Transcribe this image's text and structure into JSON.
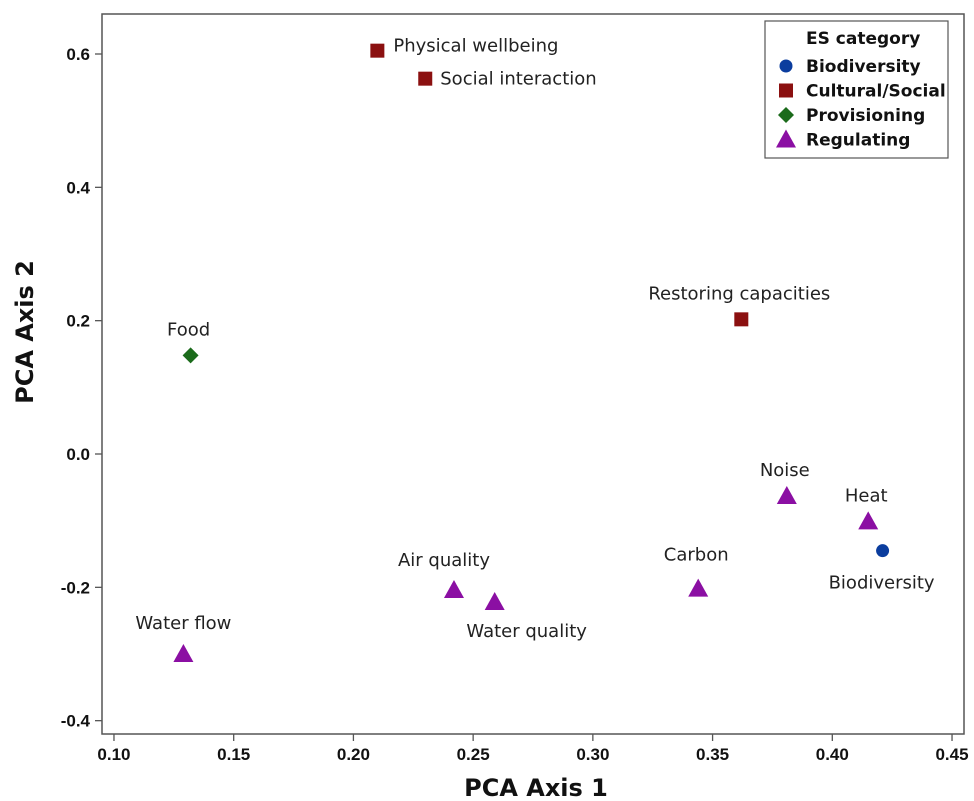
{
  "chart_data": {
    "type": "scatter",
    "xlabel": "PCA Axis 1",
    "ylabel": "PCA Axis 2",
    "xlim": [
      0.095,
      0.455
    ],
    "ylim": [
      -0.42,
      0.66
    ],
    "xticks": [
      0.1,
      0.15,
      0.2,
      0.25,
      0.3,
      0.35,
      0.4,
      0.45
    ],
    "xtick_labels": [
      "0.10",
      "0.15",
      "0.20",
      "0.25",
      "0.30",
      "0.35",
      "0.40",
      "0.45"
    ],
    "yticks": [
      0.6,
      0.4,
      0.2,
      0.0,
      -0.2,
      -0.4
    ],
    "ytick_labels": [
      "0.6",
      "0.4",
      "0.2",
      "0.0",
      "-0.2",
      "-0.4"
    ],
    "grid": false,
    "legend": {
      "title": "ES category",
      "position": "top-right"
    },
    "series": [
      {
        "name": "Biodiversity",
        "marker": "circle",
        "color": "#0b3d9e",
        "points": [
          {
            "x": 0.421,
            "y": -0.145,
            "label": "Biodiversity"
          }
        ]
      },
      {
        "name": "Cultural/Social",
        "marker": "square",
        "color": "#8b1010",
        "points": [
          {
            "x": 0.21,
            "y": 0.605,
            "label": "Physical wellbeing"
          },
          {
            "x": 0.23,
            "y": 0.563,
            "label": "Social interaction"
          },
          {
            "x": 0.362,
            "y": 0.202,
            "label": "Restoring capacities"
          }
        ]
      },
      {
        "name": "Provisioning",
        "marker": "diamond",
        "color": "#1b6b1b",
        "points": [
          {
            "x": 0.132,
            "y": 0.148,
            "label": "Food"
          }
        ]
      },
      {
        "name": "Regulating",
        "marker": "triangle",
        "color": "#8b0fa3",
        "points": [
          {
            "x": 0.381,
            "y": -0.063,
            "label": "Noise"
          },
          {
            "x": 0.415,
            "y": -0.101,
            "label": "Heat"
          },
          {
            "x": 0.344,
            "y": -0.202,
            "label": "Carbon"
          },
          {
            "x": 0.242,
            "y": -0.204,
            "label": "Air quality"
          },
          {
            "x": 0.259,
            "y": -0.222,
            "label": "Water quality"
          },
          {
            "x": 0.129,
            "y": -0.3,
            "label": "Water flow"
          }
        ]
      }
    ]
  }
}
